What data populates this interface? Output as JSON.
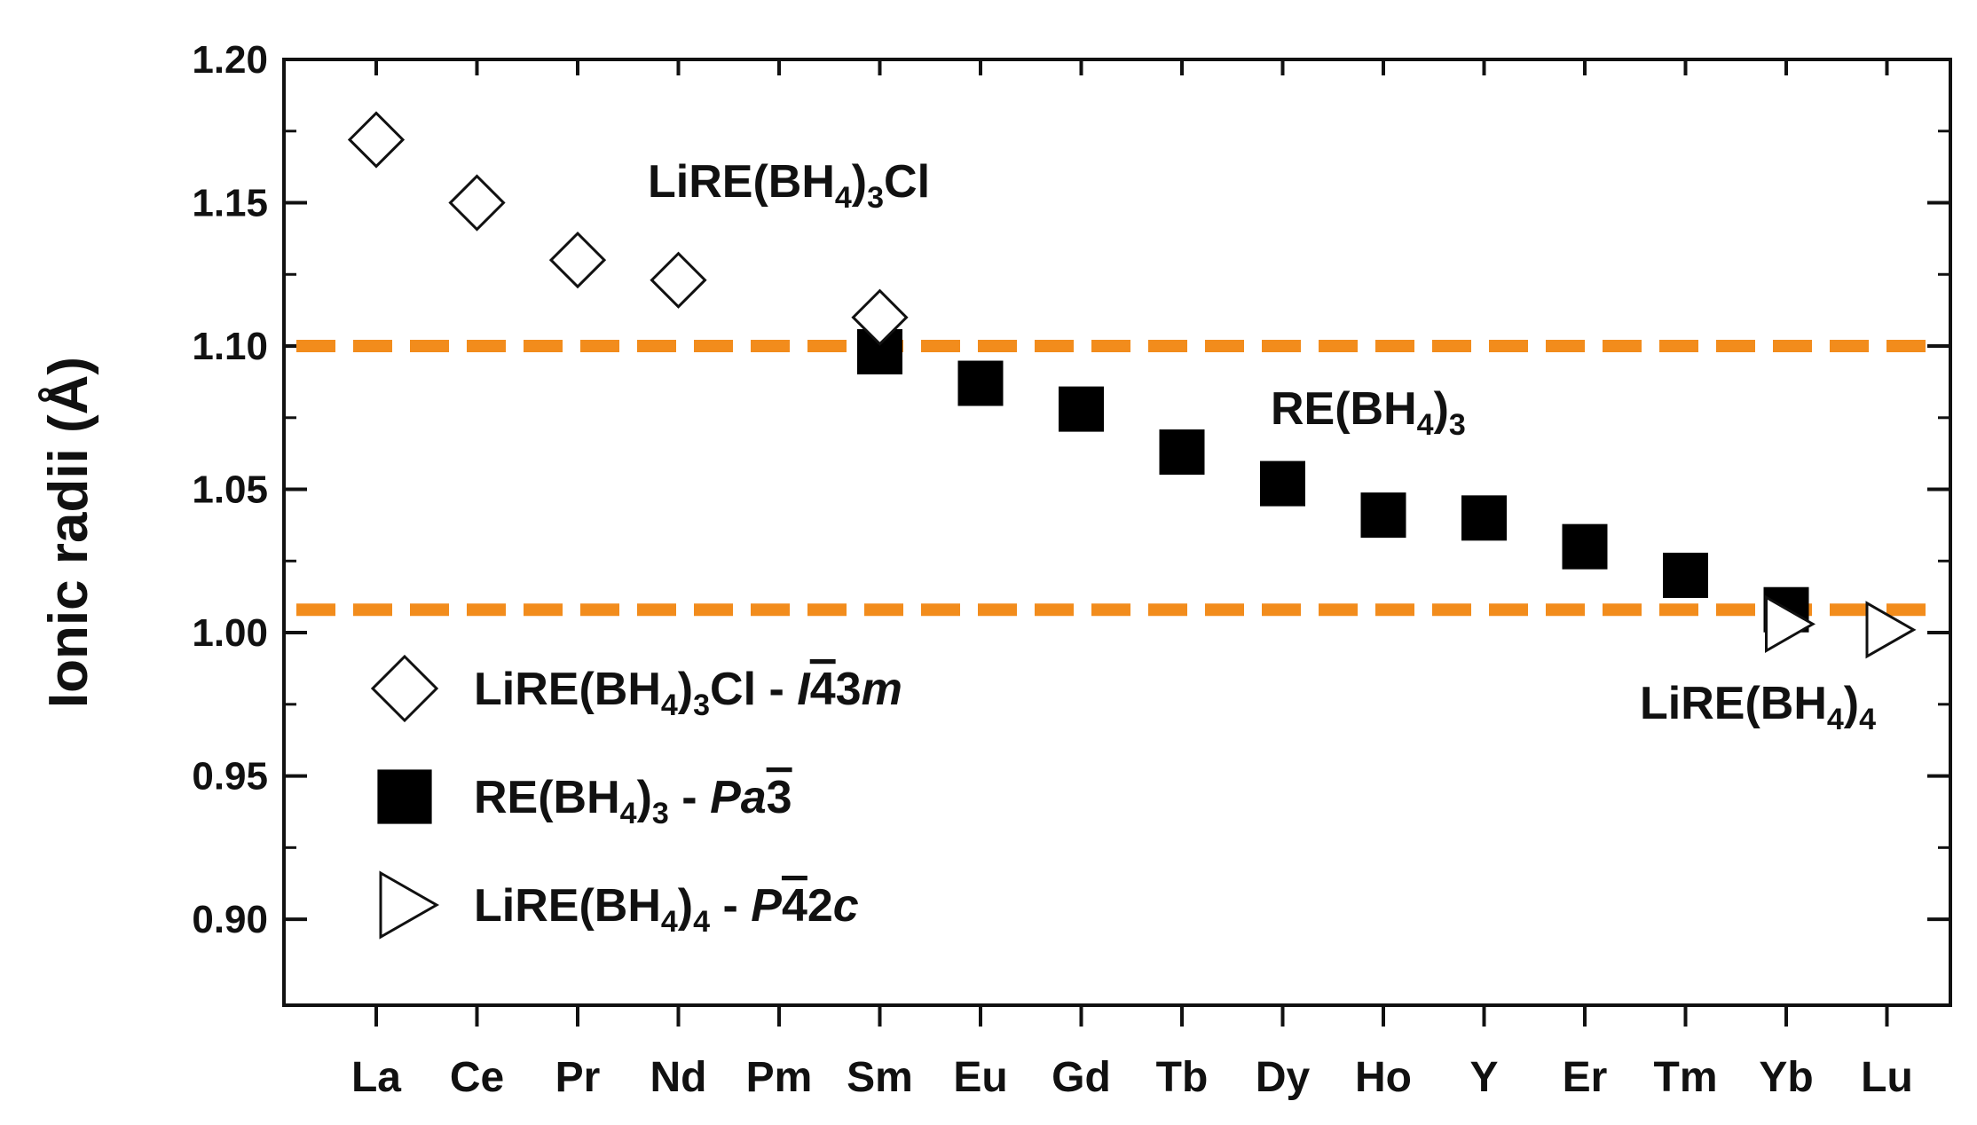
{
  "chart_data": {
    "type": "scatter",
    "ylabel": "Ionic radii (Å)",
    "xlabel": "",
    "ylim": [
      0.87,
      1.2
    ],
    "yticks": [
      0.9,
      0.95,
      1.0,
      1.05,
      1.1,
      1.15,
      1.2
    ],
    "ytick_labels": [
      "0.90",
      "0.95",
      "1.00",
      "1.05",
      "1.10",
      "1.15",
      "1.20"
    ],
    "categories": [
      "La",
      "Ce",
      "Pr",
      "Nd",
      "Pm",
      "Sm",
      "Eu",
      "Gd",
      "Tb",
      "Dy",
      "Ho",
      "Y",
      "Er",
      "Tm",
      "Yb",
      "Lu"
    ],
    "grid": false,
    "reference_lines": [
      {
        "y": 1.1,
        "color": "#f28c1c",
        "style": "dashed"
      },
      {
        "y": 1.008,
        "color": "#f28c1c",
        "style": "dashed"
      }
    ],
    "series": [
      {
        "marker": "open-diamond",
        "color": "#000000",
        "points": [
          {
            "x": "La",
            "y": 1.172
          },
          {
            "x": "Ce",
            "y": 1.15
          },
          {
            "x": "Pr",
            "y": 1.13
          },
          {
            "x": "Nd",
            "y": 1.123
          },
          {
            "x": "Sm",
            "y": 1.11
          }
        ]
      },
      {
        "marker": "filled-square",
        "color": "#000000",
        "points": [
          {
            "x": "Sm",
            "y": 1.098
          },
          {
            "x": "Eu",
            "y": 1.087
          },
          {
            "x": "Gd",
            "y": 1.078
          },
          {
            "x": "Tb",
            "y": 1.063
          },
          {
            "x": "Dy",
            "y": 1.052
          },
          {
            "x": "Ho",
            "y": 1.041
          },
          {
            "x": "Y",
            "y": 1.04
          },
          {
            "x": "Er",
            "y": 1.03
          },
          {
            "x": "Tm",
            "y": 1.02
          },
          {
            "x": "Yb",
            "y": 1.008
          }
        ]
      },
      {
        "marker": "open-triangle-right",
        "color": "#000000",
        "points": [
          {
            "x": "Yb",
            "y": 1.003
          },
          {
            "x": "Lu",
            "y": 1.001
          }
        ]
      }
    ],
    "annotations": [
      {
        "id": "lirecl",
        "base": "LiRE(BH",
        "sub1": "4",
        "mid": ")",
        "sub2": "3",
        "tail": "Cl"
      },
      {
        "id": "rebh",
        "base": "RE(BH",
        "sub1": "4",
        "mid": ")",
        "sub2": "3",
        "tail": ""
      },
      {
        "id": "lirebh4",
        "base": "LiRE(BH",
        "sub1": "4",
        "mid": ")",
        "sub2": "4",
        "tail": ""
      }
    ],
    "legend": {
      "placement": "bottom-left",
      "entries": [
        {
          "marker": "open-diamond",
          "base": "LiRE(BH",
          "sub1": "4",
          "mid": ")",
          "sub2": "3",
          "tail": "Cl - ",
          "sg_a": "I",
          "sg_bar": "4",
          "sg_b": "3m"
        },
        {
          "marker": "filled-square",
          "base": "RE(BH",
          "sub1": "4",
          "mid": ")",
          "sub2": "3",
          "tail": " - ",
          "sg_a": "Pa",
          "sg_bar": "3",
          "sg_b": ""
        },
        {
          "marker": "open-triangle-right",
          "base": "LiRE(BH",
          "sub1": "4",
          "mid": ")",
          "sub2": "4",
          "tail": " - ",
          "sg_a": "P",
          "sg_bar": "4",
          "sg_b": "2c"
        }
      ]
    }
  }
}
